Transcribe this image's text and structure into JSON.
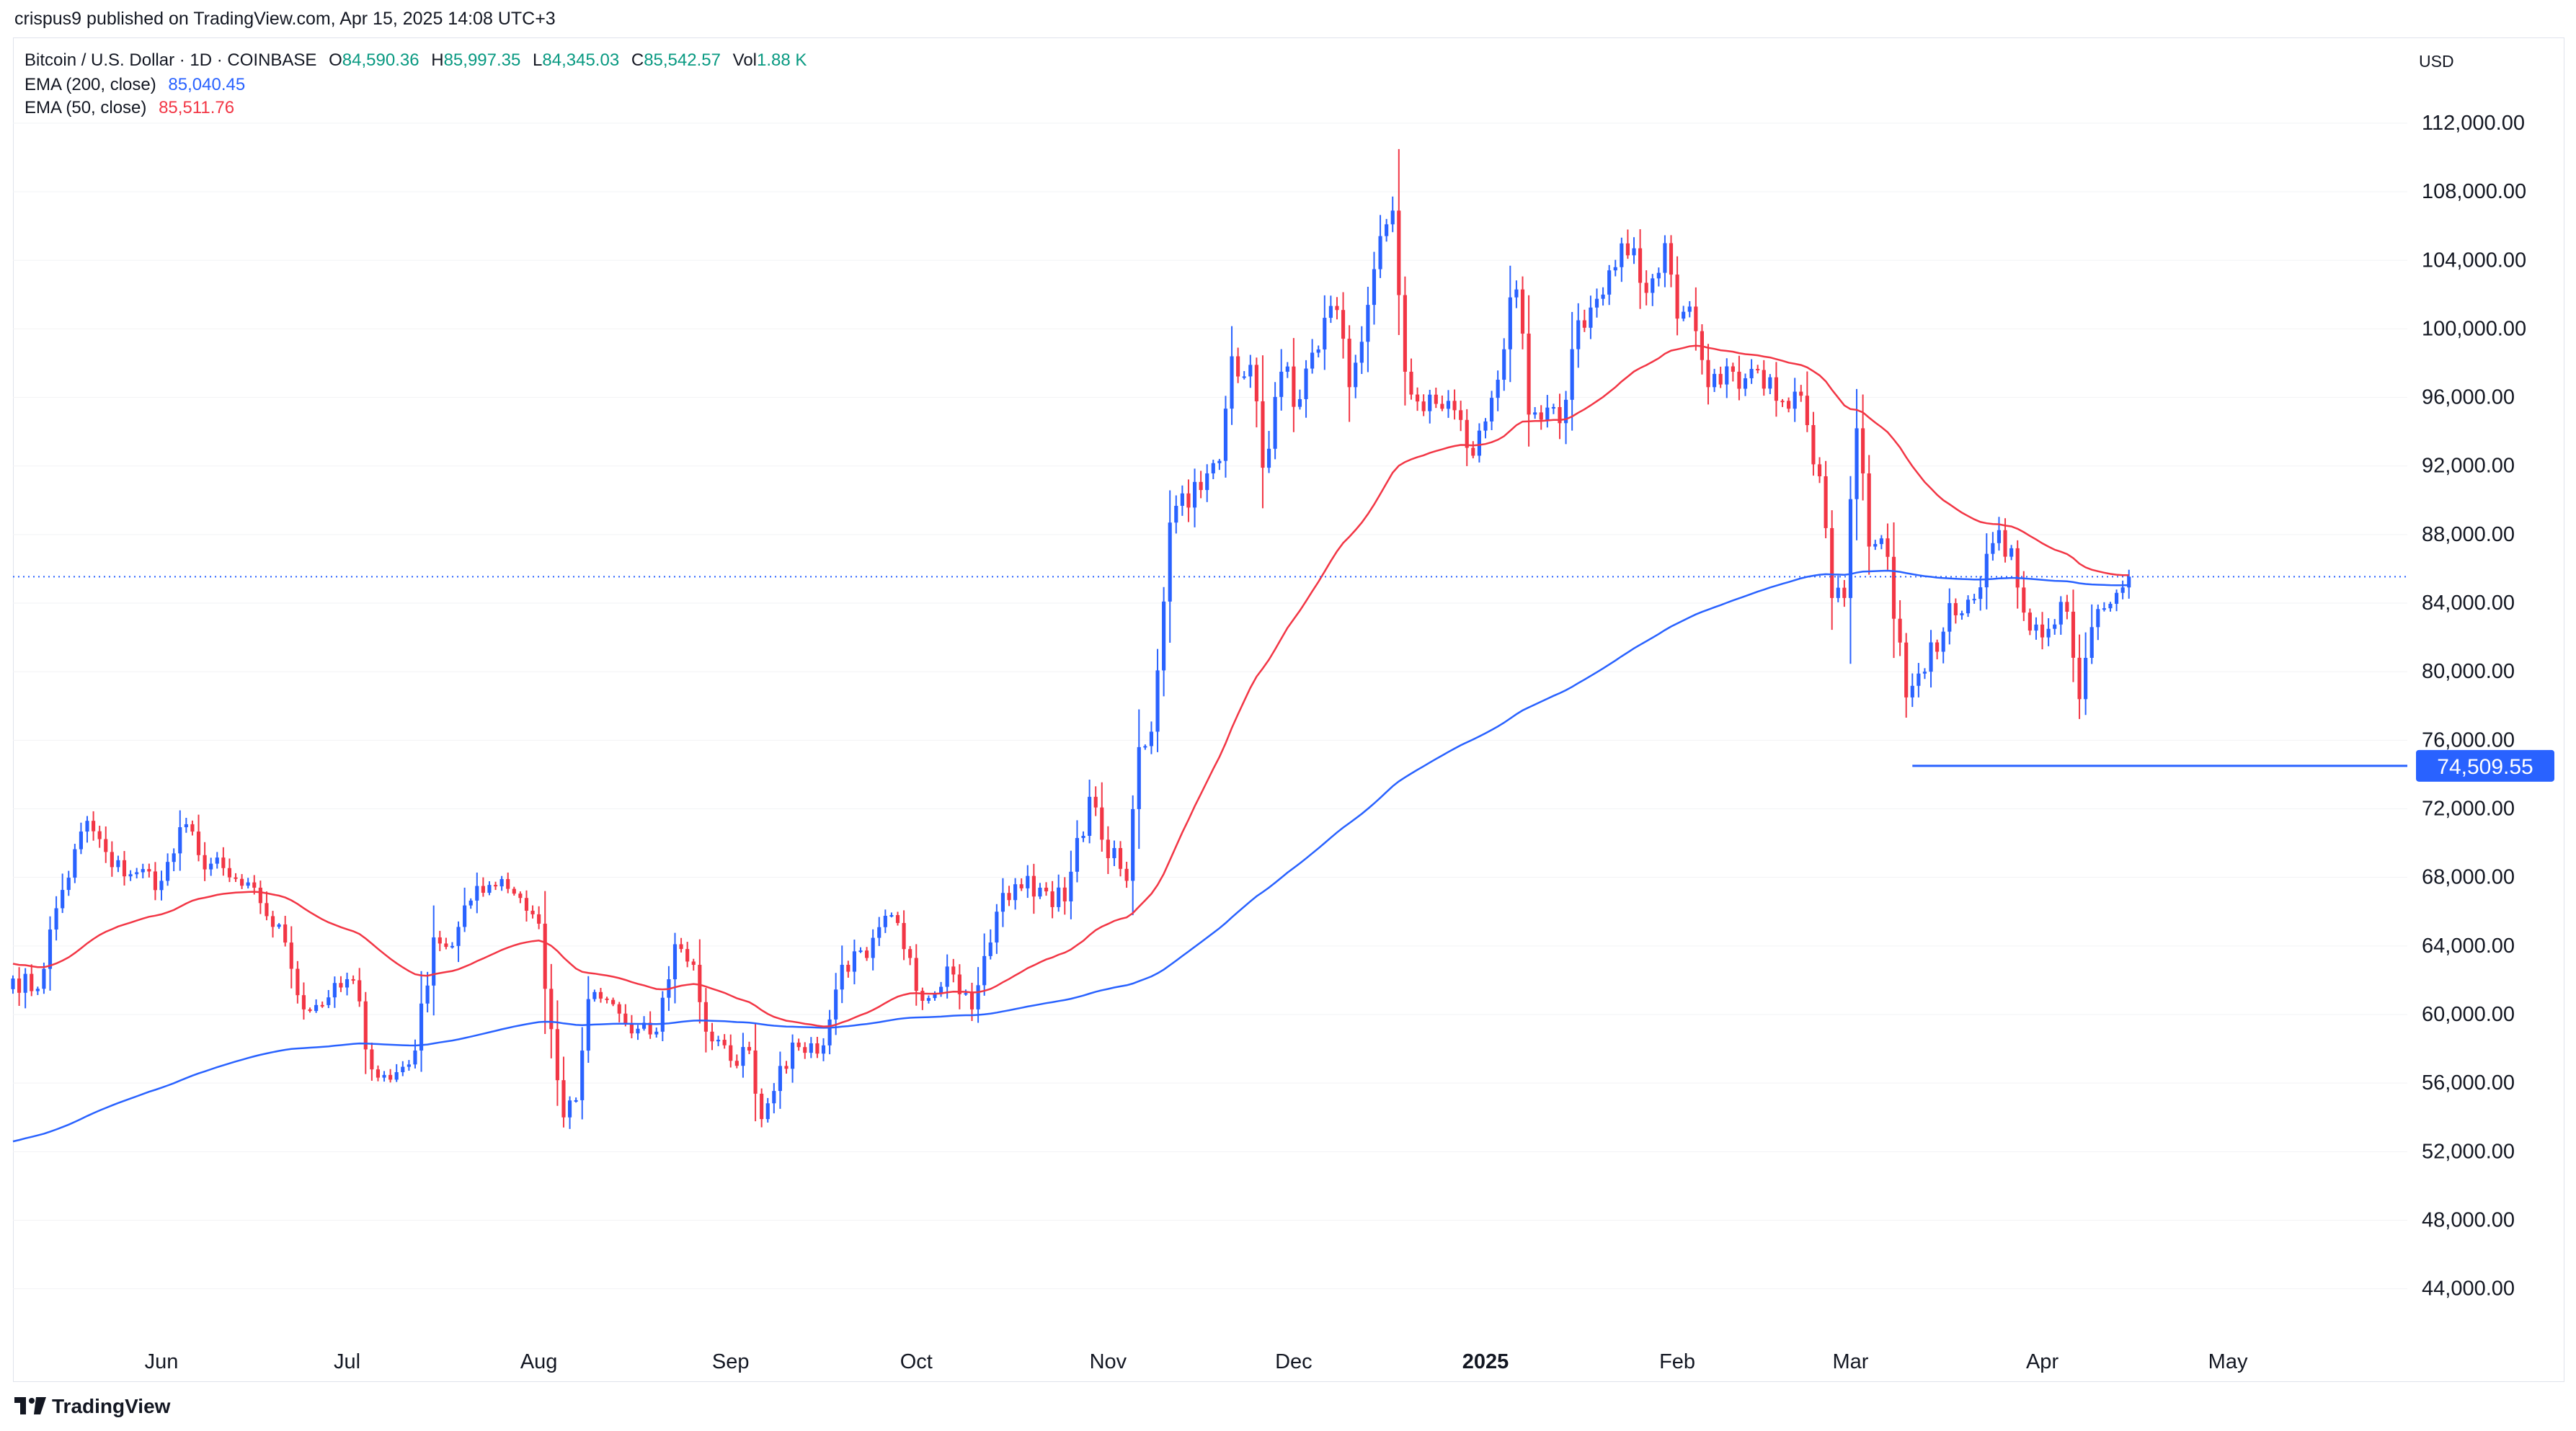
{
  "header": {
    "publisher_line": "crispus9 published on TradingView.com, Apr 15, 2025 14:08 UTC+3"
  },
  "legend": {
    "symbol": "Bitcoin / U.S. Dollar · 1D · COINBASE",
    "o_key": "O",
    "o_val": "84,590.36",
    "h_key": "H",
    "h_val": "85,997.35",
    "l_key": "L",
    "l_val": "84,345.03",
    "c_key": "C",
    "c_val": "85,542.57",
    "vol_key": "Vol",
    "vol_val": "1.88 K",
    "ema200_label": "EMA (200, close)",
    "ema200_val": "85,040.45",
    "ema50_label": "EMA (50, close)",
    "ema50_val": "85,511.76"
  },
  "currency": "USD",
  "footer": {
    "logo_text": "TradingView"
  },
  "colors": {
    "up": "#2962ff",
    "down": "#f23645",
    "ema200": "#2962ff",
    "ema50": "#f23645",
    "support": "#2962ff",
    "badge": "#2962ff"
  },
  "chart_data": {
    "type": "candlestick",
    "title": "Bitcoin / U.S. Dollar · 1D · COINBASE",
    "xlabel": "",
    "ylabel": "USD",
    "ylim": [
      41000,
      117000
    ],
    "yticks": [
      "112,000.00",
      "108,000.00",
      "104,000.00",
      "100,000.00",
      "96,000.00",
      "92,000.00",
      "88,000.00",
      "84,000.00",
      "80,000.00",
      "76,000.00",
      "72,000.00",
      "68,000.00",
      "64,000.00",
      "60,000.00",
      "56,000.00",
      "52,000.00",
      "48,000.00",
      "44,000.00"
    ],
    "ytick_values": [
      112000,
      108000,
      104000,
      100000,
      96000,
      92000,
      88000,
      84000,
      80000,
      76000,
      72000,
      68000,
      64000,
      60000,
      56000,
      52000,
      48000,
      44000
    ],
    "xticks": [
      "Jun",
      "Jul",
      "Aug",
      "Sep",
      "Oct",
      "Nov",
      "Dec",
      "2025",
      "Feb",
      "Mar",
      "Apr",
      "May"
    ],
    "xtick_dates": [
      "2024-06-01",
      "2024-07-01",
      "2024-08-01",
      "2024-09-01",
      "2024-10-01",
      "2024-11-01",
      "2024-12-01",
      "2025-01-01",
      "2025-02-01",
      "2025-03-01",
      "2025-04-01",
      "2025-05-01"
    ],
    "x_range": [
      "2024-05-08",
      "2025-05-30"
    ],
    "last_price": 85542.57,
    "support_level": {
      "value": 74509.55,
      "label": "74,509.55",
      "from": "2025-03-11"
    },
    "closes": [
      [
        "2024-05-08",
        62100
      ],
      [
        "2024-05-12",
        61500
      ],
      [
        "2024-05-15",
        66200
      ],
      [
        "2024-05-20",
        71300
      ],
      [
        "2024-05-24",
        68600
      ],
      [
        "2024-05-28",
        68300
      ],
      [
        "2024-06-01",
        67800
      ],
      [
        "2024-06-05",
        71100
      ],
      [
        "2024-06-07",
        69300
      ],
      [
        "2024-06-12",
        68000
      ],
      [
        "2024-06-17",
        66500
      ],
      [
        "2024-06-21",
        64200
      ],
      [
        "2024-06-24",
        60300
      ],
      [
        "2024-06-28",
        61000
      ],
      [
        "2024-07-02",
        62000
      ],
      [
        "2024-07-05",
        56800
      ],
      [
        "2024-07-08",
        56200
      ],
      [
        "2024-07-12",
        57900
      ],
      [
        "2024-07-15",
        64500
      ],
      [
        "2024-07-18",
        64000
      ],
      [
        "2024-07-22",
        67500
      ],
      [
        "2024-07-26",
        67900
      ],
      [
        "2024-07-29",
        66800
      ],
      [
        "2024-08-01",
        65300
      ],
      [
        "2024-08-02",
        61500
      ],
      [
        "2024-08-05",
        54000
      ],
      [
        "2024-08-07",
        55000
      ],
      [
        "2024-08-09",
        60900
      ],
      [
        "2024-08-13",
        60600
      ],
      [
        "2024-08-16",
        58900
      ],
      [
        "2024-08-20",
        59000
      ],
      [
        "2024-08-23",
        64100
      ],
      [
        "2024-08-26",
        62900
      ],
      [
        "2024-08-28",
        59000
      ],
      [
        "2024-09-01",
        57300
      ],
      [
        "2024-09-04",
        57900
      ],
      [
        "2024-09-06",
        53900
      ],
      [
        "2024-09-09",
        57000
      ],
      [
        "2024-09-12",
        58100
      ],
      [
        "2024-09-16",
        58200
      ],
      [
        "2024-09-19",
        62900
      ],
      [
        "2024-09-23",
        63300
      ],
      [
        "2024-09-27",
        65800
      ],
      [
        "2024-09-30",
        63300
      ],
      [
        "2024-10-02",
        60800
      ],
      [
        "2024-10-06",
        62800
      ],
      [
        "2024-10-10",
        60300
      ],
      [
        "2024-10-14",
        66000
      ],
      [
        "2024-10-17",
        67600
      ],
      [
        "2024-10-21",
        67400
      ],
      [
        "2024-10-25",
        66600
      ],
      [
        "2024-10-29",
        72700
      ],
      [
        "2024-10-31",
        70200
      ],
      [
        "2024-11-04",
        67800
      ],
      [
        "2024-11-06",
        75600
      ],
      [
        "2024-11-08",
        76500
      ],
      [
        "2024-11-11",
        88700
      ],
      [
        "2024-11-13",
        90400
      ],
      [
        "2024-11-16",
        90600
      ],
      [
        "2024-11-19",
        92300
      ],
      [
        "2024-11-21",
        98400
      ],
      [
        "2024-11-24",
        97900
      ],
      [
        "2024-11-26",
        91900
      ],
      [
        "2024-11-29",
        97500
      ],
      [
        "2024-12-02",
        95900
      ],
      [
        "2024-12-05",
        98800
      ],
      [
        "2024-12-08",
        101100
      ],
      [
        "2024-12-10",
        96600
      ],
      [
        "2024-12-13",
        101400
      ],
      [
        "2024-12-16",
        106100
      ],
      [
        "2024-12-17",
        106900
      ],
      [
        "2024-12-19",
        97500
      ],
      [
        "2024-12-22",
        95200
      ],
      [
        "2024-12-26",
        95800
      ],
      [
        "2024-12-30",
        92600
      ],
      [
        "2025-01-01",
        94600
      ],
      [
        "2025-01-06",
        102300
      ],
      [
        "2025-01-08",
        95000
      ],
      [
        "2025-01-10",
        94700
      ],
      [
        "2025-01-13",
        94500
      ],
      [
        "2025-01-16",
        100500
      ],
      [
        "2025-01-20",
        102000
      ],
      [
        "2025-01-22",
        103600
      ],
      [
        "2025-01-25",
        104700
      ],
      [
        "2025-01-27",
        102100
      ],
      [
        "2025-01-30",
        105000
      ],
      [
        "2025-02-01",
        100600
      ],
      [
        "2025-02-03",
        101300
      ],
      [
        "2025-02-06",
        96600
      ],
      [
        "2025-02-10",
        97500
      ],
      [
        "2025-02-14",
        97600
      ],
      [
        "2025-02-18",
        95800
      ],
      [
        "2025-02-21",
        96100
      ],
      [
        "2025-02-24",
        91400
      ],
      [
        "2025-02-26",
        84300
      ],
      [
        "2025-02-28",
        84300
      ],
      [
        "2025-03-02",
        94200
      ],
      [
        "2025-03-04",
        87300
      ],
      [
        "2025-03-07",
        86700
      ],
      [
        "2025-03-10",
        78500
      ],
      [
        "2025-03-13",
        80000
      ],
      [
        "2025-03-17",
        84000
      ],
      [
        "2025-03-20",
        84200
      ],
      [
        "2025-03-24",
        87500
      ],
      [
        "2025-03-27",
        87200
      ],
      [
        "2025-03-30",
        82400
      ],
      [
        "2025-04-02",
        82500
      ],
      [
        "2025-04-05",
        83500
      ],
      [
        "2025-04-07",
        78400
      ],
      [
        "2025-04-09",
        82600
      ],
      [
        "2025-04-11",
        83700
      ],
      [
        "2025-04-13",
        84600
      ],
      [
        "2025-04-15",
        85542.57
      ]
    ]
  }
}
